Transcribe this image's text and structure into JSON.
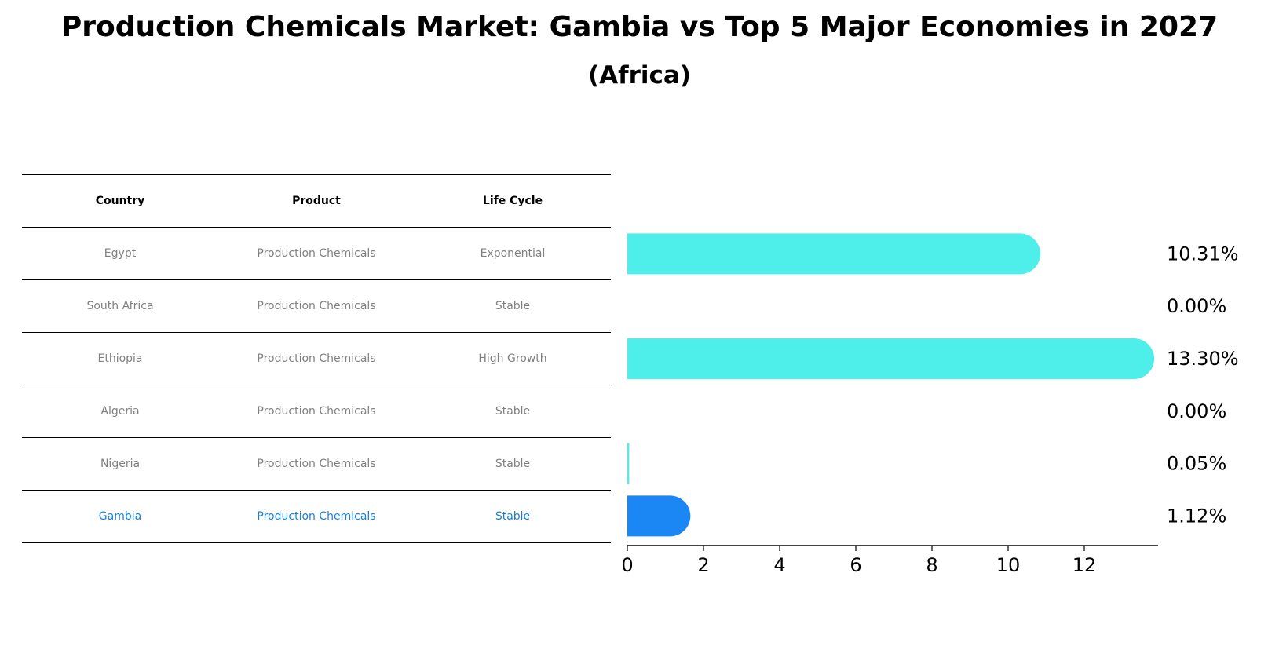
{
  "title": "Production Chemicals Market: Gambia vs Top 5 Major Economies in 2027",
  "subtitle": "(Africa)",
  "table": {
    "headers": [
      "Country",
      "Product",
      "Life Cycle"
    ],
    "rows": [
      {
        "country": "Egypt",
        "product": "Production Chemicals",
        "lifecycle": "Exponential"
      },
      {
        "country": "South Africa",
        "product": "Production Chemicals",
        "lifecycle": "Stable"
      },
      {
        "country": "Ethiopia",
        "product": "Production Chemicals",
        "lifecycle": "High Growth"
      },
      {
        "country": "Algeria",
        "product": "Production Chemicals",
        "lifecycle": "Stable"
      },
      {
        "country": "Nigeria",
        "product": "Production Chemicals",
        "lifecycle": "Stable"
      },
      {
        "country": "Gambia",
        "product": "Production Chemicals",
        "lifecycle": "Stable"
      }
    ]
  },
  "chart_data": {
    "type": "bar",
    "orientation": "horizontal",
    "categories": [
      "Egypt",
      "South Africa",
      "Ethiopia",
      "Algeria",
      "Nigeria",
      "Gambia"
    ],
    "values": [
      10.31,
      0.0,
      13.3,
      0.0,
      0.05,
      1.12
    ],
    "labels": [
      "10.31%",
      "0.00%",
      "13.30%",
      "0.00%",
      "0.05%",
      "1.12%"
    ],
    "xticks": [
      0,
      2,
      4,
      6,
      8,
      10,
      12
    ],
    "xlim": [
      0,
      14
    ],
    "highlight": "Gambia"
  },
  "colors": {
    "bar": "#4eeeea",
    "highlight": "#1b87f5",
    "highlight_text": "#1a7fd4",
    "muted_text": "#808080"
  }
}
